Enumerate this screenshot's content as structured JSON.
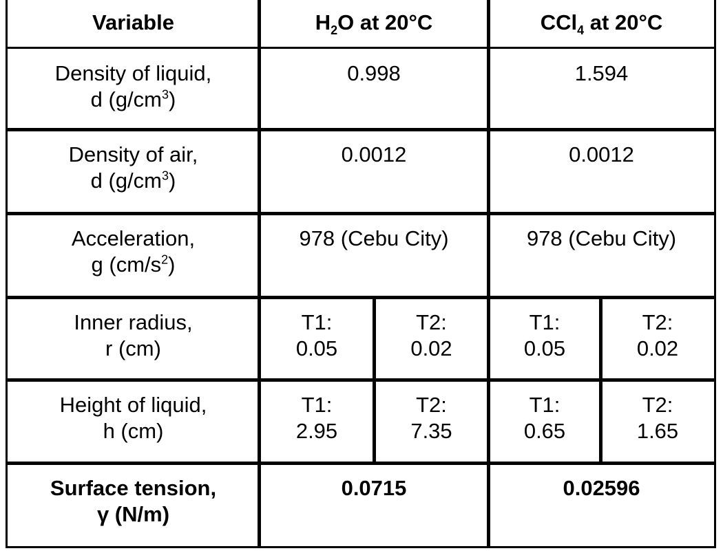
{
  "header": {
    "variable": "Variable",
    "h2o_pre": "H",
    "h2o_sub": "2",
    "h2o_post": "O at 20°C",
    "ccl4_pre": "CCl",
    "ccl4_sub": "4",
    "ccl4_post": " at 20°C"
  },
  "rows": [
    {
      "l1": "Density of liquid,",
      "l2": "d (g/cm",
      "sup": "3",
      "l2b": ")",
      "h2o": "0.998",
      "ccl4": "1.594"
    },
    {
      "l1": "Density of air,",
      "l2": "d (g/cm",
      "sup": "3",
      "l2b": ")",
      "h2o": "0.0012",
      "ccl4": "0.0012"
    },
    {
      "l1": "Acceleration,",
      "l2": "g (cm/s",
      "sup": "2",
      "l2b": ")",
      "h2o": "978 (Cebu City)",
      "ccl4": "978 (Cebu City)"
    },
    {
      "l1": "Inner radius,",
      "l2": "r (cm)",
      "h2o_t1": "T1:",
      "h2o_t1v": "0.05",
      "h2o_t2": "T2:",
      "h2o_t2v": "0.02",
      "ccl4_t1": "T1:",
      "ccl4_t1v": "0.05",
      "ccl4_t2": "T2:",
      "ccl4_t2v": "0.02"
    },
    {
      "l1": "Height of liquid,",
      "l2": "h (cm)",
      "h2o_t1": "T1:",
      "h2o_t1v": "2.95",
      "h2o_t2": "T2:",
      "h2o_t2v": "7.35",
      "ccl4_t1": "T1:",
      "ccl4_t1v": "0.65",
      "ccl4_t2": "T2:",
      "ccl4_t2v": "1.65"
    },
    {
      "l1": "Surface tension,",
      "l2": "γ (N/m)",
      "h2o": "0.0715",
      "ccl4": "0.02596"
    }
  ]
}
